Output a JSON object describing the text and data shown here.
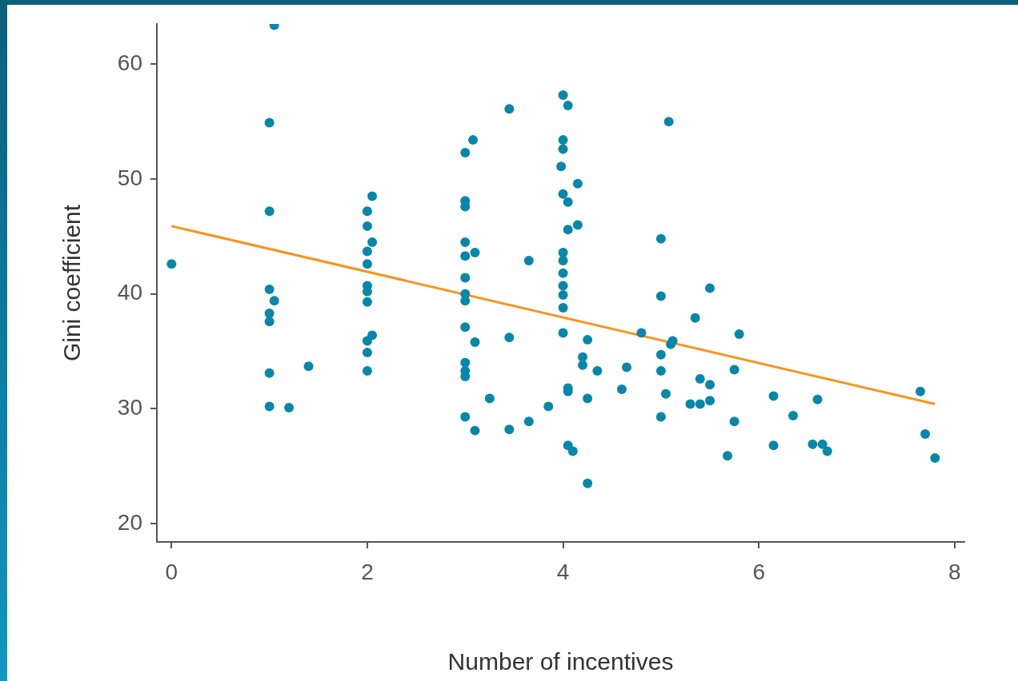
{
  "chart_data": {
    "type": "scatter",
    "xlabel": "Number of incentives",
    "ylabel": "Gini coefficient",
    "xlim": [
      -0.15,
      8.1
    ],
    "ylim": [
      18.4,
      63.5
    ],
    "xticks": [
      0,
      2,
      4,
      6,
      8
    ],
    "yticks": [
      20,
      30,
      40,
      50,
      60
    ],
    "grid": false,
    "legend": false,
    "series": [
      {
        "type": "scatter",
        "color": "#0a86a8",
        "marker": "circle",
        "x": [
          0,
          1,
          1,
          1,
          1,
          1,
          1,
          1,
          1.05,
          1.05,
          1.2,
          1.4,
          2,
          2,
          2.05,
          2.05,
          2,
          2,
          2,
          2,
          2,
          2,
          2,
          2.05,
          2,
          3,
          3.08,
          3,
          3,
          3,
          3,
          3.1,
          3,
          3,
          3,
          3,
          3.1,
          3,
          3,
          3,
          3,
          3.1,
          3.25,
          3.45,
          3.45,
          3.45,
          3.65,
          3.65,
          3.85,
          4,
          4.05,
          4,
          4,
          3.98,
          4,
          4.05,
          4.05,
          4,
          4,
          4,
          4,
          4,
          4,
          4,
          4.05,
          4.05,
          4.05,
          4.1,
          4.15,
          4.15,
          4.25,
          4.25,
          4.25,
          4.2,
          4.2,
          4.35,
          4.6,
          4.65,
          4.8,
          5.08,
          5,
          5,
          5,
          5.1,
          5,
          5.05,
          5,
          5.12,
          5.3,
          5.4,
          5.4,
          5.35,
          5.5,
          5.5,
          5.5,
          5.68,
          5.75,
          5.75,
          5.8,
          6.15,
          6.15,
          6.35,
          6.55,
          6.6,
          6.65,
          6.7,
          7.65,
          7.7,
          7.8
        ],
        "values": [
          42.6,
          54.9,
          47.2,
          40.4,
          38.3,
          37.6,
          33.1,
          30.2,
          63.4,
          39.4,
          30.1,
          33.7,
          47.2,
          45.9,
          44.5,
          48.5,
          43.7,
          42.6,
          40.7,
          40.2,
          39.3,
          35.9,
          34.9,
          36.4,
          33.3,
          52.3,
          53.4,
          48.1,
          47.6,
          44.5,
          43.3,
          43.6,
          41.4,
          40.0,
          39.4,
          37.1,
          35.8,
          34.0,
          33.3,
          32.8,
          29.3,
          28.1,
          30.9,
          56.1,
          36.2,
          28.2,
          42.9,
          28.9,
          30.2,
          57.3,
          56.4,
          53.4,
          52.6,
          51.1,
          48.7,
          48.0,
          45.6,
          43.6,
          42.9,
          41.8,
          40.7,
          39.9,
          38.8,
          36.6,
          31.8,
          31.5,
          26.8,
          26.3,
          49.6,
          46.0,
          36.0,
          30.9,
          23.5,
          34.5,
          33.8,
          33.3,
          31.7,
          33.6,
          36.6,
          55.0,
          44.8,
          39.8,
          34.7,
          35.6,
          33.3,
          31.3,
          29.3,
          35.9,
          30.4,
          32.6,
          30.4,
          37.9,
          40.5,
          32.1,
          30.7,
          25.9,
          28.9,
          33.4,
          36.5,
          31.1,
          26.8,
          29.4,
          26.9,
          30.8,
          26.9,
          26.3,
          31.5,
          27.8,
          25.7
        ]
      },
      {
        "type": "line",
        "color": "#f7941d",
        "x": [
          0,
          7.8
        ],
        "values": [
          45.9,
          30.4
        ]
      }
    ]
  }
}
